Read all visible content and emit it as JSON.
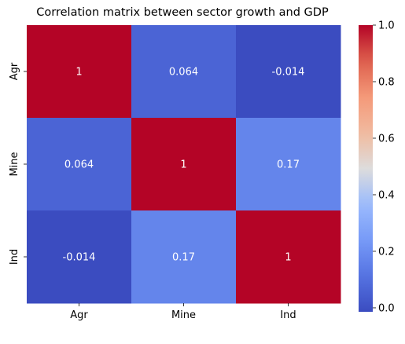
{
  "chart_data": {
    "type": "heatmap",
    "title": "Correlation matrix between sector growth and GDP",
    "xlabel": "",
    "ylabel": "",
    "x_categories": [
      "Agr",
      "Mine",
      "Ind"
    ],
    "y_categories": [
      "Agr",
      "Mine",
      "Ind"
    ],
    "matrix": [
      [
        1,
        0.064,
        -0.014
      ],
      [
        0.064,
        1,
        0.17
      ],
      [
        -0.014,
        0.17,
        1
      ]
    ],
    "cell_labels": [
      [
        "1",
        "0.064",
        "-0.014"
      ],
      [
        "0.064",
        "1",
        "0.17"
      ],
      [
        "-0.014",
        "0.17",
        "1"
      ]
    ],
    "colormap": "coolwarm",
    "colorbar": {
      "range": [
        -0.014,
        1
      ],
      "ticks": [
        0.0,
        0.2,
        0.4,
        0.6,
        0.8,
        1.0
      ],
      "tick_labels": [
        "0.0",
        "0.2",
        "0.4",
        "0.6",
        "0.8",
        "1.0"
      ]
    },
    "colors": {
      "low": "#3b4cc0",
      "mid": "#dddcdc",
      "high": "#b40426",
      "annotation_text": "#ffffff"
    }
  }
}
